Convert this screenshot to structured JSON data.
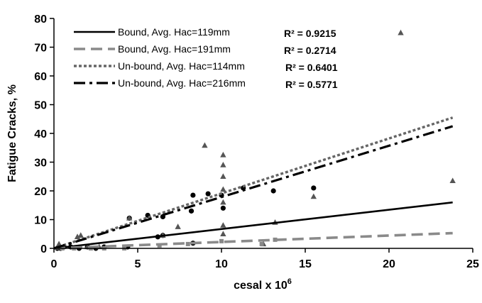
{
  "chart_data": {
    "type": "scatter",
    "xlabel": "cesal x 10",
    "xlabel_sup": "6",
    "ylabel": "Fatigue Cracks, %",
    "xlim": [
      0,
      25
    ],
    "ylim": [
      0,
      80
    ],
    "xticks": [
      0,
      5,
      10,
      15,
      20,
      25
    ],
    "yticks": [
      0,
      10,
      20,
      30,
      40,
      50,
      60,
      70,
      80
    ],
    "grid": false,
    "legend_position": "top-left",
    "trendlines": [
      {
        "name": "Bound, Avg. Hac=119mm",
        "r2_label": "R² = 0.9215",
        "x": [
          0,
          23.8
        ],
        "y": [
          0,
          16
        ],
        "color": "#000000",
        "dash": "solid"
      },
      {
        "name": "Bound, Avg. Hac=191mm",
        "r2_label": "R² = 0.2714",
        "x": [
          0,
          23.8
        ],
        "y": [
          0,
          5.3
        ],
        "color": "#8a8a8a",
        "dash": "long-dash"
      },
      {
        "name": "Un-bound, Avg. Hac=114mm",
        "r2_label": "R² = 0.6401",
        "x": [
          0,
          23.8
        ],
        "y": [
          0,
          45.5
        ],
        "color": "#666666",
        "dash": "short-dash"
      },
      {
        "name": "Un-bound, Avg. Hac=216mm",
        "r2_label": "R² = 0.5771",
        "x": [
          0,
          23.8
        ],
        "y": [
          0,
          42.5
        ],
        "color": "#000000",
        "dash": "dash-dot"
      }
    ],
    "series": [
      {
        "marker": "circle",
        "color": "#000000",
        "points": [
          [
            0.2,
            0
          ],
          [
            0.4,
            0
          ],
          [
            0.6,
            0.5
          ],
          [
            1.0,
            0.5
          ],
          [
            1.5,
            0
          ],
          [
            2.0,
            0.5
          ],
          [
            2.5,
            0
          ],
          [
            3.0,
            0.5
          ],
          [
            4.5,
            10.5
          ],
          [
            5.6,
            11.5
          ],
          [
            6.5,
            11
          ],
          [
            8.2,
            13
          ],
          [
            8.3,
            18.5
          ],
          [
            9.2,
            19
          ],
          [
            10.0,
            18.5
          ],
          [
            10.1,
            14
          ],
          [
            11.3,
            21
          ],
          [
            13.1,
            20
          ],
          [
            15.5,
            21
          ],
          [
            4.4,
            0.5
          ],
          [
            6.2,
            4
          ],
          [
            6.5,
            4.5
          ],
          [
            8.3,
            1.8
          ]
        ]
      },
      {
        "marker": "triangle",
        "color": "#555555",
        "points": [
          [
            0.3,
            1.5
          ],
          [
            1.4,
            4
          ],
          [
            1.6,
            4.5
          ],
          [
            2.0,
            0.5
          ],
          [
            2.7,
            0.5
          ],
          [
            4.5,
            10.5
          ],
          [
            6.5,
            4.5
          ],
          [
            7.4,
            7.5
          ],
          [
            9.0,
            35.8
          ],
          [
            10.1,
            32.5
          ],
          [
            10.1,
            29
          ],
          [
            10.1,
            25
          ],
          [
            10.1,
            20.5
          ],
          [
            10.1,
            16
          ],
          [
            10.1,
            8
          ],
          [
            10.1,
            5
          ],
          [
            12.5,
            1.5
          ],
          [
            13.2,
            9
          ],
          [
            15.5,
            18
          ],
          [
            20.7,
            75
          ],
          [
            23.8,
            23.5
          ]
        ]
      },
      {
        "marker": "square",
        "color": "#888888",
        "points": [
          [
            0.5,
            0
          ],
          [
            1.2,
            0
          ],
          [
            2.2,
            0
          ],
          [
            3.0,
            0
          ],
          [
            4.2,
            0
          ],
          [
            6.3,
            1
          ],
          [
            8.0,
            1.5
          ],
          [
            10.0,
            2.5
          ],
          [
            12.4,
            1.5
          ],
          [
            13.2,
            3
          ]
        ]
      }
    ]
  }
}
